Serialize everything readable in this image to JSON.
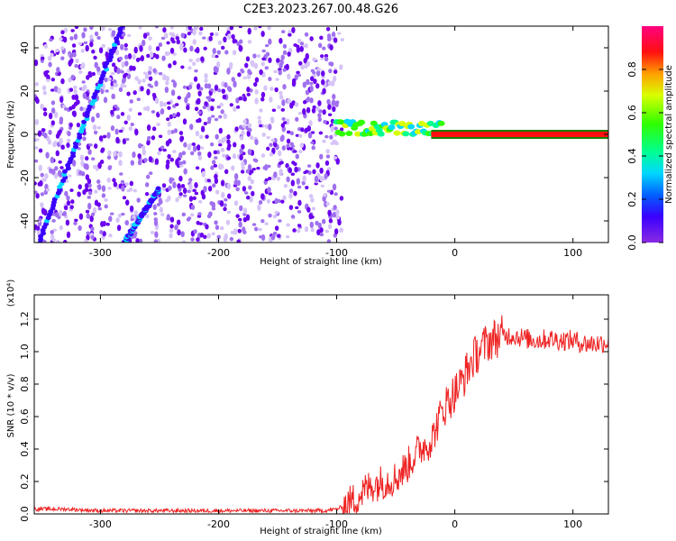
{
  "title": "C2E3.2023.267.00.48.G26",
  "colors": {
    "snr_line": "#ee2222",
    "spectral_points": "#6a00ee",
    "tone_line": "#ff0033"
  },
  "chart_data": [
    {
      "type": "heatmap",
      "title": "C2E3.2023.267.00.48.G26",
      "xlabel": "Height of straight line (km)",
      "ylabel": "Frequency (Hz)",
      "xlim": [
        -356,
        130
      ],
      "ylim": [
        -50,
        50
      ],
      "xticks": [
        -300,
        -200,
        -100,
        0,
        100
      ],
      "yticks": [
        -40,
        -20,
        0,
        20,
        40
      ],
      "colorbar": {
        "label": "Normalized spectral amplitude",
        "range": [
          0.0,
          1.0
        ],
        "ticks": [
          "0.0",
          "0.2",
          "0.4",
          "0.6",
          "0.8"
        ],
        "colormap": "rainbow (violet to red)"
      },
      "features": [
        {
          "kind": "noise",
          "x_range": [
            -356,
            -95
          ],
          "y_range": [
            -50,
            50
          ],
          "amplitude": 0.1
        },
        {
          "kind": "streak",
          "from": [
            -352,
            -50
          ],
          "to": [
            -282,
            50
          ],
          "amplitude": 0.3
        },
        {
          "kind": "streak",
          "from": [
            -280,
            -50
          ],
          "to": [
            -250,
            -25
          ],
          "amplitude": 0.3
        },
        {
          "kind": "tone",
          "x_range": [
            -100,
            -10
          ],
          "y": 3,
          "amplitude": 0.45
        },
        {
          "kind": "tone",
          "x_range": [
            -20,
            130
          ],
          "y": 0,
          "amplitude": 0.95
        }
      ]
    },
    {
      "type": "line",
      "xlabel": "Height of straight line (km)",
      "ylabel": "SNR (10 * v/v)",
      "y_scale_note": "(x10⁴)",
      "scale_factor": 10000,
      "xlim": [
        -356,
        130
      ],
      "ylim": [
        0.0,
        1.35
      ],
      "xticks": [
        -300,
        -200,
        -100,
        0,
        100
      ],
      "yticks": [
        "0.0",
        "0.2",
        "0.4",
        "0.6",
        "0.8",
        "1.0",
        "1.2"
      ],
      "series": [
        {
          "x": [
            -356,
            -330,
            -300,
            -250,
            -200,
            -150,
            -110,
            -100,
            -90,
            -80,
            -70,
            -60,
            -50,
            -40,
            -30,
            -20,
            -15,
            -10,
            -5,
            0,
            5,
            10,
            15,
            20,
            25,
            30,
            40,
            50,
            60,
            70,
            80,
            90,
            100,
            110,
            120,
            130
          ],
          "y": [
            0.03,
            0.03,
            0.02,
            0.02,
            0.02,
            0.02,
            0.02,
            0.03,
            0.06,
            0.12,
            0.18,
            0.2,
            0.22,
            0.3,
            0.4,
            0.45,
            0.55,
            0.65,
            0.7,
            0.75,
            0.8,
            0.88,
            0.95,
            1.0,
            1.04,
            1.07,
            1.1,
            1.1,
            1.08,
            1.07,
            1.08,
            1.07,
            1.07,
            1.05,
            1.05,
            1.06
          ],
          "noise": 0.08
        }
      ]
    }
  ]
}
